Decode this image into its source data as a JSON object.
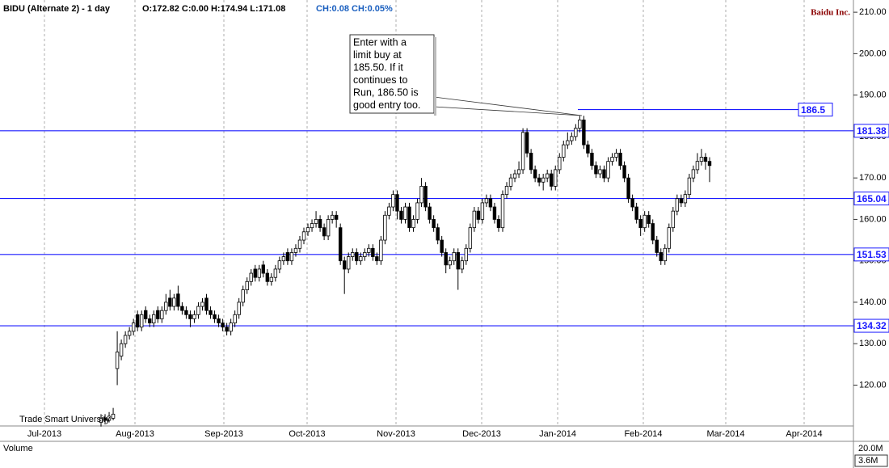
{
  "chart_data": {
    "type": "candlestick",
    "title": "BIDU (Alternate 2) - 1 day",
    "quote": "O:172.82 C:0.00 H:174.94 L:171.08",
    "change": "CH:0.08 CH:0.05%",
    "company": "Baidu Inc.",
    "watermark": "Trade Smart University",
    "annotation": [
      "Enter with a",
      "limit buy at",
      "185.50. If it",
      "continues to",
      "Run, 186.50 is",
      "good entry too."
    ],
    "x_axis_labels": [
      "Jul-2013",
      "Aug-2013",
      "Sep-2013",
      "Oct-2013",
      "Nov-2013",
      "Dec-2013",
      "Jan-2014",
      "Feb-2014",
      "Mar-2014",
      "Apr-2014"
    ],
    "ylim": [
      110.14,
      212.95
    ],
    "yticks": [
      {
        "value": 120,
        "label": "120.00"
      },
      {
        "value": 130,
        "label": "130.00"
      },
      {
        "value": 140,
        "label": "140.00"
      },
      {
        "value": 150,
        "label": "150.00"
      },
      {
        "value": 160,
        "label": "160.00"
      },
      {
        "value": 170,
        "label": "170.00"
      },
      {
        "value": 180,
        "label": "180.00"
      },
      {
        "value": 190,
        "label": "190.00"
      },
      {
        "value": 200,
        "label": "200.00"
      },
      {
        "value": 210,
        "label": "210.00"
      }
    ],
    "levels": [
      181.38,
      165.04,
      151.53,
      134.32
    ],
    "entry_level": 186.5,
    "level_color": "#1a1aff",
    "volume_pane": {
      "title": "Volume",
      "yticks": [
        {
          "value": 20000000,
          "label": "20.0M"
        }
      ],
      "last_value": {
        "value": 3600000,
        "label": "3.6M"
      }
    },
    "candles": [
      [
        111,
        113,
        110,
        112
      ],
      [
        112,
        113,
        110.5,
        111.5
      ],
      [
        111.5,
        113.5,
        111,
        112.5
      ],
      [
        112,
        114.5,
        111.5,
        113
      ],
      [
        124,
        133,
        120,
        128
      ],
      [
        127,
        131,
        126,
        130
      ],
      [
        130,
        133,
        129,
        132
      ],
      [
        132,
        134,
        131,
        133
      ],
      [
        133,
        136,
        132,
        135
      ],
      [
        137,
        138,
        133,
        134
      ],
      [
        134,
        138,
        133,
        137
      ],
      [
        138,
        139,
        135,
        136
      ],
      [
        136,
        137,
        134,
        135
      ],
      [
        135,
        138,
        134,
        137
      ],
      [
        138,
        139,
        135,
        136
      ],
      [
        136,
        139,
        135,
        138
      ],
      [
        138,
        142,
        137,
        140
      ],
      [
        141,
        143,
        138,
        139
      ],
      [
        139,
        142,
        138,
        141
      ],
      [
        142,
        144,
        138,
        139
      ],
      [
        139,
        140,
        137,
        138
      ],
      [
        138,
        139,
        136,
        137
      ],
      [
        137,
        138,
        134,
        136
      ],
      [
        136,
        138,
        135,
        137
      ],
      [
        137,
        140,
        136,
        139
      ],
      [
        139,
        141,
        138,
        140
      ],
      [
        141,
        142,
        137,
        138
      ],
      [
        138,
        139,
        136,
        137
      ],
      [
        137,
        138,
        135,
        136
      ],
      [
        136,
        137,
        134,
        135
      ],
      [
        135,
        136,
        133,
        134
      ],
      [
        134,
        135,
        132,
        133
      ],
      [
        133,
        136,
        132,
        135
      ],
      [
        135,
        138,
        134,
        137
      ],
      [
        137,
        141,
        136,
        140
      ],
      [
        140,
        144,
        139,
        143
      ],
      [
        143,
        146,
        142,
        145
      ],
      [
        145,
        148,
        144,
        147
      ],
      [
        148,
        149,
        145,
        146
      ],
      [
        146,
        149,
        145,
        148
      ],
      [
        149,
        150,
        146,
        147
      ],
      [
        147,
        148,
        144,
        145
      ],
      [
        145,
        147,
        144,
        146
      ],
      [
        146,
        149,
        145,
        148
      ],
      [
        148,
        151,
        147,
        150
      ],
      [
        150,
        152,
        149,
        151
      ],
      [
        152,
        153,
        149,
        150
      ],
      [
        150,
        153,
        149,
        152
      ],
      [
        152,
        154,
        151,
        153
      ],
      [
        153,
        156,
        152,
        155
      ],
      [
        155,
        158,
        154,
        157
      ],
      [
        157,
        159,
        156,
        158
      ],
      [
        158,
        160,
        157,
        159
      ],
      [
        159,
        162,
        158,
        160
      ],
      [
        160,
        161,
        157,
        158
      ],
      [
        158,
        159,
        155,
        156
      ],
      [
        156,
        161,
        155,
        160
      ],
      [
        160,
        162,
        159,
        161
      ],
      [
        161,
        162,
        158,
        160
      ],
      [
        158,
        159,
        149,
        150
      ],
      [
        150,
        151,
        142,
        148
      ],
      [
        148,
        152,
        147,
        151
      ],
      [
        151,
        153,
        150,
        152
      ],
      [
        152,
        153,
        149,
        150
      ],
      [
        150,
        152,
        149,
        151
      ],
      [
        151,
        153,
        150,
        152
      ],
      [
        152,
        154,
        151,
        153
      ],
      [
        153,
        154,
        150,
        151
      ],
      [
        151,
        152,
        149,
        150
      ],
      [
        150,
        156,
        149,
        155
      ],
      [
        155,
        162,
        154,
        161
      ],
      [
        161,
        164,
        160,
        163
      ],
      [
        163,
        167,
        162,
        166
      ],
      [
        166,
        167,
        160,
        162
      ],
      [
        162,
        163,
        159,
        160
      ],
      [
        160,
        164,
        159,
        163
      ],
      [
        163,
        164,
        157,
        158
      ],
      [
        158,
        161,
        157,
        160
      ],
      [
        160,
        165,
        159,
        164
      ],
      [
        164,
        170,
        163,
        168
      ],
      [
        168,
        169,
        162,
        163
      ],
      [
        163,
        164,
        159,
        160
      ],
      [
        160,
        161,
        157,
        158
      ],
      [
        158,
        159,
        154,
        155
      ],
      [
        155,
        156,
        151,
        152
      ],
      [
        152,
        153,
        147,
        149
      ],
      [
        149,
        151,
        148,
        150
      ],
      [
        150,
        153,
        149,
        152
      ],
      [
        152,
        153,
        143,
        148
      ],
      [
        148,
        151,
        147,
        150
      ],
      [
        150,
        154,
        149,
        153
      ],
      [
        153,
        159,
        152,
        158
      ],
      [
        158,
        163,
        157,
        162
      ],
      [
        162,
        163,
        159,
        160
      ],
      [
        160,
        165,
        159,
        164
      ],
      [
        164,
        166,
        163,
        165
      ],
      [
        165,
        166,
        162,
        163
      ],
      [
        163,
        164,
        159,
        160
      ],
      [
        160,
        161,
        157,
        158
      ],
      [
        158,
        167,
        157,
        166
      ],
      [
        166,
        169,
        165,
        168
      ],
      [
        168,
        171,
        167,
        170
      ],
      [
        170,
        172,
        169,
        171
      ],
      [
        171,
        174,
        170,
        172
      ],
      [
        172,
        182,
        171,
        181
      ],
      [
        181,
        182,
        175,
        176
      ],
      [
        176,
        177,
        171,
        172
      ],
      [
        172,
        173,
        169,
        170
      ],
      [
        170,
        171,
        168,
        169
      ],
      [
        169,
        171,
        167,
        170
      ],
      [
        170,
        172,
        169,
        171
      ],
      [
        171,
        172,
        167,
        168
      ],
      [
        168,
        173,
        167,
        172
      ],
      [
        172,
        176,
        171,
        175
      ],
      [
        175,
        179,
        174,
        178
      ],
      [
        178,
        181,
        177,
        179
      ],
      [
        179,
        181,
        178,
        180
      ],
      [
        180,
        183,
        179,
        182
      ],
      [
        182,
        185,
        181,
        184
      ],
      [
        184,
        185,
        177,
        178
      ],
      [
        178,
        179,
        175,
        176
      ],
      [
        176,
        177,
        172,
        173
      ],
      [
        173,
        174,
        170,
        171
      ],
      [
        171,
        173,
        170,
        172
      ],
      [
        172,
        173,
        169,
        170
      ],
      [
        170,
        175,
        169,
        174
      ],
      [
        174,
        176,
        173,
        175
      ],
      [
        175,
        177,
        174,
        176
      ],
      [
        176,
        177,
        172,
        173
      ],
      [
        173,
        174,
        169,
        170
      ],
      [
        170,
        171,
        164,
        165
      ],
      [
        165,
        166,
        162,
        163
      ],
      [
        163,
        164,
        159,
        160
      ],
      [
        160,
        161,
        156,
        158
      ],
      [
        158,
        162,
        157,
        161
      ],
      [
        161,
        162,
        158,
        159
      ],
      [
        159,
        160,
        154,
        155
      ],
      [
        155,
        156,
        151,
        152
      ],
      [
        152,
        153,
        149,
        150
      ],
      [
        150,
        154,
        149,
        153
      ],
      [
        153,
        159,
        152,
        158
      ],
      [
        158,
        163,
        157,
        162
      ],
      [
        162,
        166,
        161,
        165
      ],
      [
        165,
        166,
        163,
        164
      ],
      [
        164,
        167,
        163,
        166
      ],
      [
        166,
        171,
        165,
        170
      ],
      [
        170,
        173,
        169,
        172
      ],
      [
        172,
        176,
        171,
        174
      ],
      [
        174,
        177,
        173,
        175
      ],
      [
        175,
        176,
        172,
        174
      ],
      [
        174,
        175,
        169,
        173
      ]
    ]
  }
}
